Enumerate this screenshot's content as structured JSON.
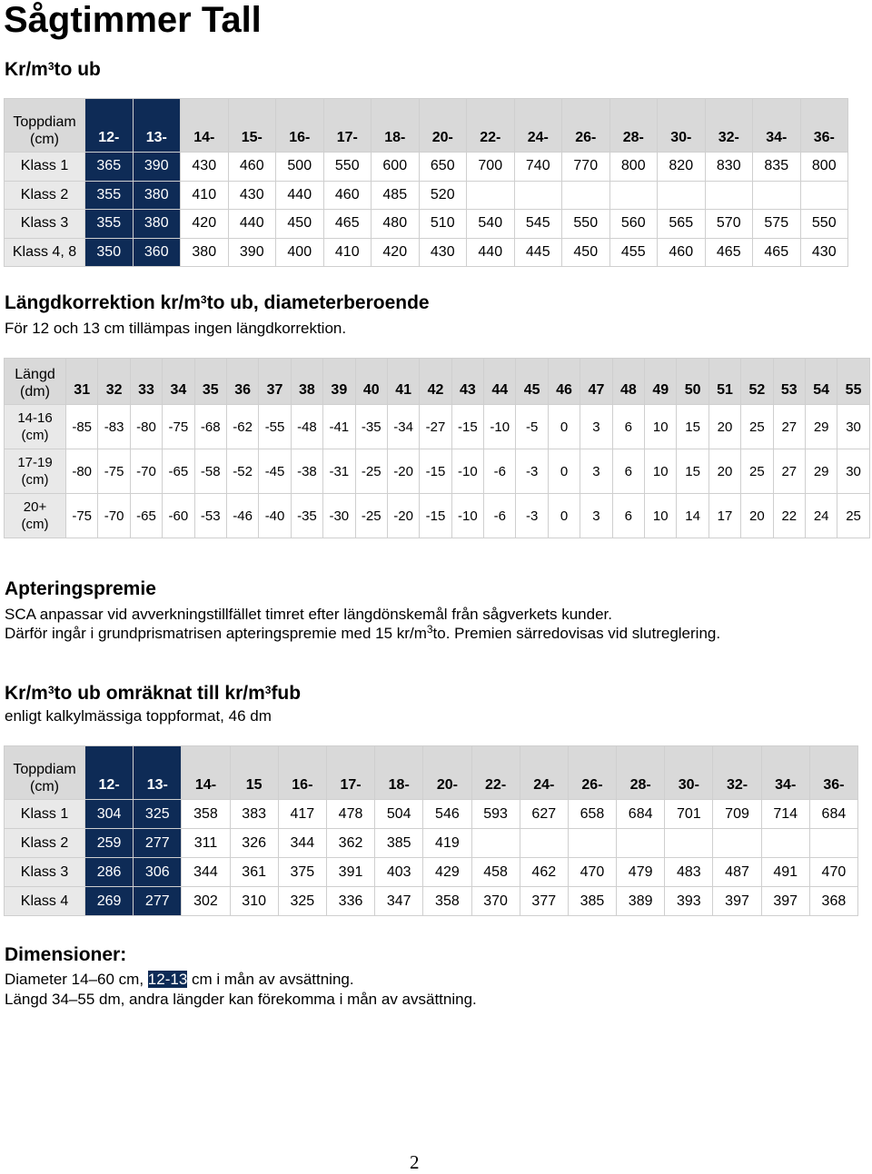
{
  "title": "Sågtimmer Tall",
  "section1": {
    "heading": "Kr/m",
    "sup": "3",
    "heading_suffix": "to ub"
  },
  "table1": {
    "header_label": [
      "Toppdiam",
      "(cm)"
    ],
    "columns": [
      "12-",
      "13-",
      "14-",
      "15-",
      "16-",
      "17-",
      "18-",
      "20-",
      "22-",
      "24-",
      "26-",
      "28-",
      "30-",
      "32-",
      "34-",
      "36-"
    ],
    "rows": [
      {
        "label": "Klass 1",
        "values": [
          "365",
          "390",
          "430",
          "460",
          "500",
          "550",
          "600",
          "650",
          "700",
          "740",
          "770",
          "800",
          "820",
          "830",
          "835",
          "800"
        ]
      },
      {
        "label": "Klass 2",
        "values": [
          "355",
          "380",
          "410",
          "430",
          "440",
          "460",
          "485",
          "520",
          "",
          "",
          "",
          "",
          "",
          "",
          "",
          ""
        ]
      },
      {
        "label": "Klass 3",
        "values": [
          "355",
          "380",
          "420",
          "440",
          "450",
          "465",
          "480",
          "510",
          "540",
          "545",
          "550",
          "560",
          "565",
          "570",
          "575",
          "550"
        ]
      },
      {
        "label": "Klass 4, 8",
        "values": [
          "350",
          "360",
          "380",
          "390",
          "400",
          "410",
          "420",
          "430",
          "440",
          "445",
          "450",
          "455",
          "460",
          "465",
          "465",
          "430"
        ]
      }
    ]
  },
  "section2": {
    "heading": "Längdkorrektion kr/m",
    "sup": "3",
    "heading_suffix": "to ub, diameterberoende",
    "note": "För 12 och 13 cm tillämpas ingen längdkorrektion."
  },
  "table2": {
    "header_label": [
      "Längd",
      "(dm)"
    ],
    "columns": [
      "31",
      "32",
      "33",
      "34",
      "35",
      "36",
      "37",
      "38",
      "39",
      "40",
      "41",
      "42",
      "43",
      "44",
      "45",
      "46",
      "47",
      "48",
      "49",
      "50",
      "51",
      "52",
      "53",
      "54",
      "55"
    ],
    "rows": [
      {
        "label": [
          "14-16",
          "(cm)"
        ],
        "values": [
          "-85",
          "-83",
          "-80",
          "-75",
          "-68",
          "-62",
          "-55",
          "-48",
          "-41",
          "-35",
          "-34",
          "-27",
          "-15",
          "-10",
          "-5",
          "0",
          "3",
          "6",
          "10",
          "15",
          "20",
          "25",
          "27",
          "29",
          "30"
        ]
      },
      {
        "label": [
          "17-19",
          "(cm)"
        ],
        "values": [
          "-80",
          "-75",
          "-70",
          "-65",
          "-58",
          "-52",
          "-45",
          "-38",
          "-31",
          "-25",
          "-20",
          "-15",
          "-10",
          "-6",
          "-3",
          "0",
          "3",
          "6",
          "10",
          "15",
          "20",
          "25",
          "27",
          "29",
          "30"
        ]
      },
      {
        "label": [
          "20+",
          "(cm)"
        ],
        "values": [
          "-75",
          "-70",
          "-65",
          "-60",
          "-53",
          "-46",
          "-40",
          "-35",
          "-30",
          "-25",
          "-20",
          "-15",
          "-10",
          "-6",
          "-3",
          "0",
          "3",
          "6",
          "10",
          "14",
          "17",
          "20",
          "22",
          "24",
          "25"
        ]
      }
    ]
  },
  "section3": {
    "heading": "Apteringspremie",
    "line1": "SCA anpassar vid avverkningstillfället timret efter längdönskemål från sågverkets kunder.",
    "line2_a": "Därför ingår i grundprismatrisen apteringspremie med 15 kr/m",
    "line2_sup": "3",
    "line2_b": "to. Premien särredovisas vid slutreglering."
  },
  "section4": {
    "heading_a": "Kr/m",
    "sup1": "3",
    "heading_b": "to ub omräknat till kr/m",
    "sup2": "3",
    "heading_c": "fub",
    "sub": "enligt kalkylmässiga toppformat, 46 dm"
  },
  "table3": {
    "header_label": [
      "Toppdiam",
      "(cm)"
    ],
    "columns": [
      "12-",
      "13-",
      "14-",
      "15",
      "16-",
      "17-",
      "18-",
      "20-",
      "22-",
      "24-",
      "26-",
      "28-",
      "30-",
      "32-",
      "34-",
      "36-"
    ],
    "rows": [
      {
        "label": "Klass 1",
        "values": [
          "304",
          "325",
          "358",
          "383",
          "417",
          "478",
          "504",
          "546",
          "593",
          "627",
          "658",
          "684",
          "701",
          "709",
          "714",
          "684"
        ]
      },
      {
        "label": "Klass 2",
        "values": [
          "259",
          "277",
          "311",
          "326",
          "344",
          "362",
          "385",
          "419",
          "",
          "",
          "",
          "",
          "",
          "",
          "",
          ""
        ]
      },
      {
        "label": "Klass 3",
        "values": [
          "286",
          "306",
          "344",
          "361",
          "375",
          "391",
          "403",
          "429",
          "458",
          "462",
          "470",
          "479",
          "483",
          "487",
          "491",
          "470"
        ]
      },
      {
        "label": "Klass 4",
        "values": [
          "269",
          "277",
          "302",
          "310",
          "325",
          "336",
          "347",
          "358",
          "370",
          "377",
          "385",
          "389",
          "393",
          "397",
          "397",
          "368"
        ]
      }
    ]
  },
  "section5": {
    "heading": "Dimensioner:",
    "line1_a": "Diameter 14–60 cm, ",
    "line1_hl": "12-13",
    "line1_b": " cm i mån av avsättning.",
    "line2": "Längd 34–55 dm, andra längder kan förekomma i mån av avsättning."
  },
  "page_number": "2",
  "colors": {
    "dark_cell": "#0e2b56",
    "header_bg": "#d9d9d9",
    "label_bg": "#e9e9e9"
  }
}
